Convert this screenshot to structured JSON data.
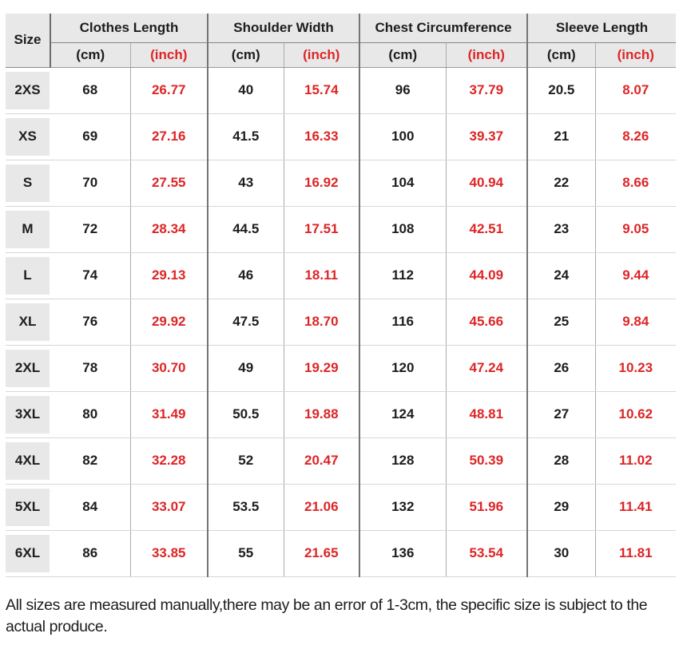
{
  "table": {
    "size_header": "Size",
    "groups": [
      {
        "label": "Clothes Length",
        "cm_label": "(cm)",
        "inch_label": "(inch)"
      },
      {
        "label": "Shoulder Width",
        "cm_label": "(cm)",
        "inch_label": "(inch)"
      },
      {
        "label": "Chest Circumference",
        "cm_label": "(cm)",
        "inch_label": "(inch)"
      },
      {
        "label": "Sleeve Length",
        "cm_label": "(cm)",
        "inch_label": "(inch)"
      }
    ]
  },
  "chart_data": {
    "type": "table",
    "title": "Garment size chart",
    "columns": [
      "Size",
      "Clothes Length (cm)",
      "Clothes Length (inch)",
      "Shoulder Width (cm)",
      "Shoulder Width (inch)",
      "Chest Circumference (cm)",
      "Chest Circumference (inch)",
      "Sleeve Length (cm)",
      "Sleeve Length (inch)"
    ],
    "rows": [
      [
        "2XS",
        "68",
        "26.77",
        "40",
        "15.74",
        "96",
        "37.79",
        "20.5",
        "8.07"
      ],
      [
        "XS",
        "69",
        "27.16",
        "41.5",
        "16.33",
        "100",
        "39.37",
        "21",
        "8.26"
      ],
      [
        "S",
        "70",
        "27.55",
        "43",
        "16.92",
        "104",
        "40.94",
        "22",
        "8.66"
      ],
      [
        "M",
        "72",
        "28.34",
        "44.5",
        "17.51",
        "108",
        "42.51",
        "23",
        "9.05"
      ],
      [
        "L",
        "74",
        "29.13",
        "46",
        "18.11",
        "112",
        "44.09",
        "24",
        "9.44"
      ],
      [
        "XL",
        "76",
        "29.92",
        "47.5",
        "18.70",
        "116",
        "45.66",
        "25",
        "9.84"
      ],
      [
        "2XL",
        "78",
        "30.70",
        "49",
        "19.29",
        "120",
        "47.24",
        "26",
        "10.23"
      ],
      [
        "3XL",
        "80",
        "31.49",
        "50.5",
        "19.88",
        "124",
        "48.81",
        "27",
        "10.62"
      ],
      [
        "4XL",
        "82",
        "32.28",
        "52",
        "20.47",
        "128",
        "50.39",
        "28",
        "11.02"
      ],
      [
        "5XL",
        "84",
        "33.07",
        "53.5",
        "21.06",
        "132",
        "51.96",
        "29",
        "11.41"
      ],
      [
        "6XL",
        "86",
        "33.85",
        "55",
        "21.65",
        "136",
        "53.54",
        "30",
        "11.81"
      ]
    ]
  },
  "footer": {
    "note": "All sizes are measured manually,there may be an error of 1-3cm, the specific size is subject to the actual produce."
  },
  "colors": {
    "inch_red": "#de2526",
    "header_bg": "#e9e8e8",
    "text_dark": "#1d1d1d"
  }
}
